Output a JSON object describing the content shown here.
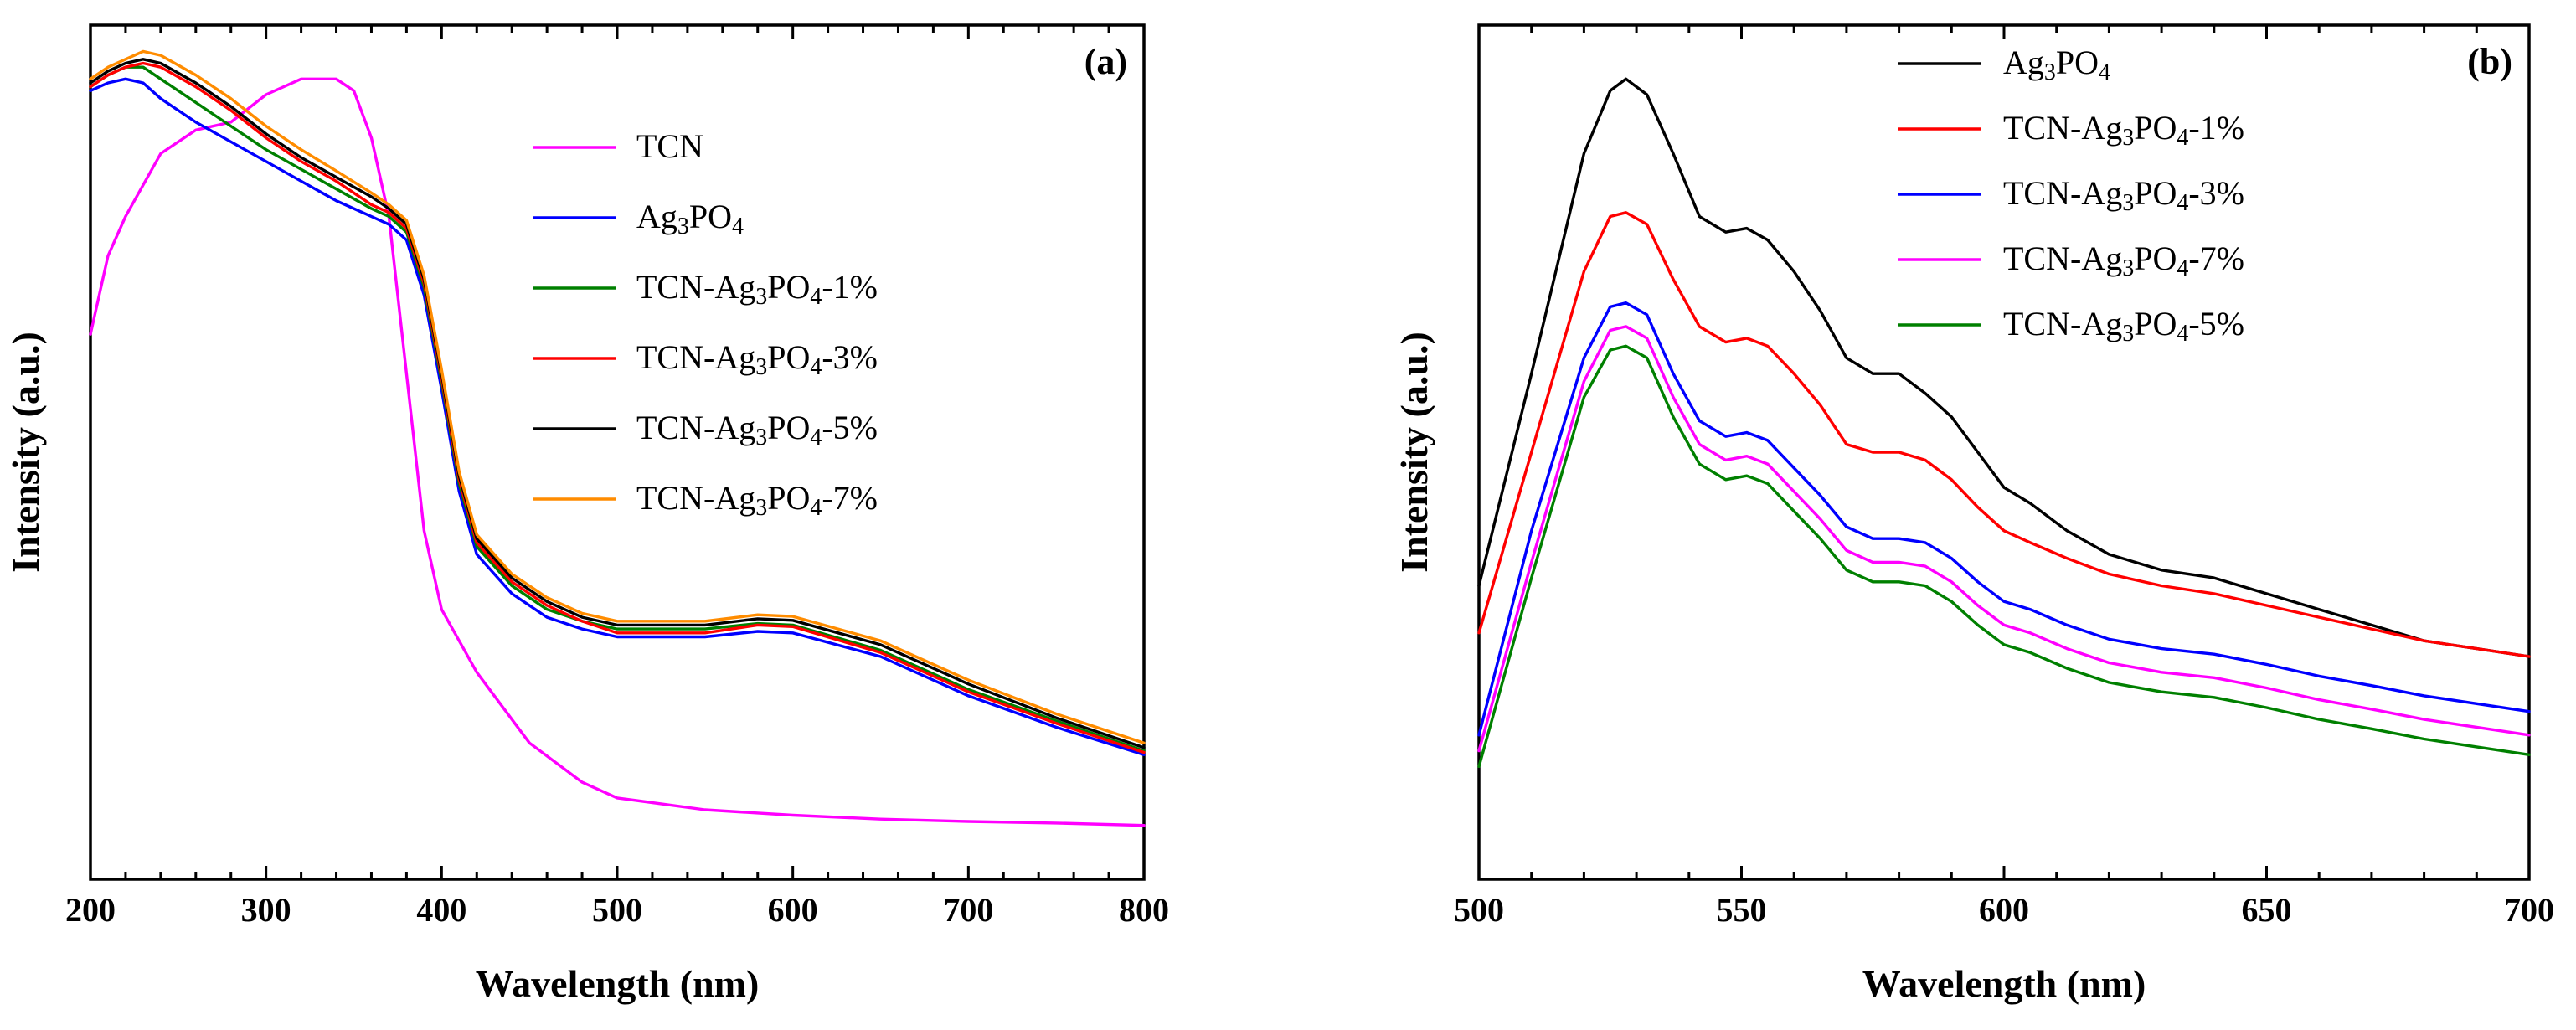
{
  "chart_data": [
    {
      "type": "line",
      "panel_label": "(a)",
      "xlabel": "Wavelength (nm)",
      "ylabel": "Intensity (a.u.)",
      "xlim": [
        200,
        800
      ],
      "ylim": [
        0,
        1
      ],
      "x_ticks": [
        "200",
        "300",
        "400",
        "500",
        "600",
        "700",
        "800"
      ],
      "y_ticks_labeled": false,
      "grid": false,
      "legend_position": "top-right",
      "series": [
        {
          "name": "TCN",
          "legend_main": "TCN",
          "legend_tail": "",
          "color": "#ff00ff",
          "x": [
            200,
            210,
            220,
            240,
            260,
            280,
            300,
            320,
            340,
            350,
            360,
            370,
            380,
            390,
            400,
            420,
            450,
            480,
            500,
            550,
            600,
            650,
            700,
            750,
            800
          ],
          "y": [
            0.65,
            0.75,
            0.8,
            0.88,
            0.91,
            0.92,
            0.955,
            0.975,
            0.975,
            0.96,
            0.9,
            0.8,
            0.6,
            0.4,
            0.3,
            0.22,
            0.13,
            0.08,
            0.06,
            0.045,
            0.038,
            0.033,
            0.03,
            0.028,
            0.025
          ]
        },
        {
          "name": "Ag3PO4",
          "legend_main": "Ag",
          "legend_sub1": "3",
          "legend_mid": "PO",
          "legend_sub2": "4",
          "legend_tail": "",
          "color": "#0000ff",
          "x": [
            200,
            210,
            220,
            230,
            240,
            260,
            280,
            300,
            320,
            340,
            360,
            370,
            380,
            390,
            400,
            410,
            420,
            440,
            460,
            480,
            500,
            550,
            580,
            600,
            650,
            700,
            750,
            800
          ],
          "y": [
            0.96,
            0.97,
            0.975,
            0.97,
            0.95,
            0.92,
            0.895,
            0.87,
            0.845,
            0.82,
            0.8,
            0.79,
            0.77,
            0.7,
            0.58,
            0.45,
            0.37,
            0.32,
            0.29,
            0.275,
            0.265,
            0.265,
            0.272,
            0.27,
            0.24,
            0.19,
            0.15,
            0.115
          ]
        },
        {
          "name": "TCN-Ag3PO4-1%",
          "legend_main": "TCN-Ag",
          "legend_sub1": "3",
          "legend_mid": "PO",
          "legend_sub2": "4",
          "legend_tail": "-1%",
          "color": "#008000",
          "x": [
            200,
            210,
            220,
            230,
            240,
            260,
            280,
            300,
            320,
            340,
            360,
            370,
            380,
            390,
            400,
            410,
            420,
            440,
            460,
            480,
            500,
            550,
            580,
            600,
            650,
            700,
            750,
            800
          ],
          "y": [
            0.965,
            0.98,
            0.99,
            0.99,
            0.975,
            0.945,
            0.915,
            0.885,
            0.86,
            0.835,
            0.81,
            0.8,
            0.78,
            0.71,
            0.59,
            0.46,
            0.38,
            0.33,
            0.3,
            0.285,
            0.275,
            0.275,
            0.282,
            0.28,
            0.248,
            0.198,
            0.158,
            0.12
          ]
        },
        {
          "name": "TCN-Ag3PO4-3%",
          "legend_main": "TCN-Ag",
          "legend_sub1": "3",
          "legend_mid": "PO",
          "legend_sub2": "4",
          "legend_tail": "-3%",
          "color": "#ff0000",
          "x": [
            200,
            210,
            220,
            230,
            240,
            260,
            280,
            300,
            320,
            340,
            360,
            370,
            380,
            390,
            400,
            410,
            420,
            440,
            460,
            480,
            500,
            550,
            580,
            600,
            650,
            700,
            750,
            800
          ],
          "y": [
            0.965,
            0.98,
            0.99,
            0.995,
            0.99,
            0.965,
            0.935,
            0.9,
            0.87,
            0.845,
            0.815,
            0.805,
            0.785,
            0.715,
            0.595,
            0.465,
            0.385,
            0.335,
            0.305,
            0.285,
            0.27,
            0.27,
            0.28,
            0.278,
            0.245,
            0.195,
            0.155,
            0.118
          ]
        },
        {
          "name": "TCN-Ag3PO4-5%",
          "legend_main": "TCN-Ag",
          "legend_sub1": "3",
          "legend_mid": "PO",
          "legend_sub2": "4",
          "legend_tail": "-5%",
          "color": "#000000",
          "x": [
            200,
            210,
            220,
            230,
            240,
            260,
            280,
            300,
            320,
            340,
            360,
            370,
            380,
            390,
            400,
            410,
            420,
            440,
            460,
            480,
            500,
            550,
            580,
            600,
            650,
            700,
            750,
            800
          ],
          "y": [
            0.97,
            0.985,
            0.995,
            1.0,
            0.995,
            0.97,
            0.94,
            0.905,
            0.875,
            0.85,
            0.825,
            0.81,
            0.79,
            0.72,
            0.6,
            0.47,
            0.39,
            0.34,
            0.31,
            0.29,
            0.28,
            0.28,
            0.288,
            0.286,
            0.255,
            0.205,
            0.162,
            0.124
          ]
        },
        {
          "name": "TCN-Ag3PO4-7%",
          "legend_main": "TCN-Ag",
          "legend_sub1": "3",
          "legend_mid": "PO",
          "legend_sub2": "4",
          "legend_tail": "-7%",
          "color": "#ff8c00",
          "x": [
            200,
            210,
            220,
            230,
            240,
            260,
            280,
            300,
            320,
            340,
            360,
            370,
            380,
            390,
            400,
            410,
            420,
            440,
            460,
            480,
            500,
            550,
            580,
            600,
            650,
            700,
            750,
            800
          ],
          "y": [
            0.975,
            0.99,
            1.0,
            1.01,
            1.005,
            0.98,
            0.95,
            0.915,
            0.885,
            0.858,
            0.83,
            0.815,
            0.795,
            0.725,
            0.605,
            0.475,
            0.395,
            0.345,
            0.315,
            0.295,
            0.285,
            0.285,
            0.293,
            0.291,
            0.26,
            0.21,
            0.167,
            0.13
          ]
        }
      ]
    },
    {
      "type": "line",
      "panel_label": "(b)",
      "xlabel": "Wavelength (nm)",
      "ylabel": "Intensity (a.u.)",
      "xlim": [
        500,
        700
      ],
      "ylim": [
        0,
        1
      ],
      "x_ticks": [
        "500",
        "550",
        "600",
        "650",
        "700"
      ],
      "y_ticks_labeled": false,
      "grid": false,
      "legend_position": "top-right",
      "series": [
        {
          "name": "Ag3PO4",
          "legend_main": "Ag",
          "legend_sub1": "3",
          "legend_mid": "PO",
          "legend_sub2": "4",
          "legend_tail": "",
          "color": "#000000",
          "x": [
            500,
            510,
            520,
            525,
            528,
            532,
            537,
            542,
            547,
            551,
            555,
            560,
            565,
            570,
            575,
            580,
            585,
            590,
            595,
            600,
            605,
            612,
            620,
            630,
            640,
            650,
            660,
            670,
            680,
            690,
            700
          ],
          "y": [
            0.33,
            0.6,
            0.88,
            0.96,
            0.975,
            0.955,
            0.88,
            0.8,
            0.78,
            0.785,
            0.77,
            0.73,
            0.68,
            0.62,
            0.6,
            0.6,
            0.575,
            0.545,
            0.5,
            0.455,
            0.435,
            0.4,
            0.37,
            0.35,
            0.34,
            0.32,
            0.3,
            0.28,
            0.26,
            0.25,
            0.24
          ]
        },
        {
          "name": "TCN-Ag3PO4-1%",
          "legend_main": "TCN-Ag",
          "legend_sub1": "3",
          "legend_mid": "PO",
          "legend_sub2": "4",
          "legend_tail": "-1%",
          "color": "#ff0000",
          "x": [
            500,
            510,
            520,
            525,
            528,
            532,
            537,
            542,
            547,
            551,
            555,
            560,
            565,
            570,
            575,
            580,
            585,
            590,
            595,
            600,
            605,
            612,
            620,
            630,
            640,
            650,
            660,
            670,
            680,
            690,
            700
          ],
          "y": [
            0.27,
            0.5,
            0.73,
            0.8,
            0.805,
            0.79,
            0.72,
            0.66,
            0.64,
            0.645,
            0.635,
            0.6,
            0.56,
            0.51,
            0.5,
            0.5,
            0.49,
            0.465,
            0.43,
            0.4,
            0.385,
            0.365,
            0.345,
            0.33,
            0.32,
            0.305,
            0.29,
            0.275,
            0.26,
            0.25,
            0.24
          ]
        },
        {
          "name": "TCN-Ag3PO4-3%",
          "legend_main": "TCN-Ag",
          "legend_sub1": "3",
          "legend_mid": "PO",
          "legend_sub2": "4",
          "legend_tail": "-3%",
          "color": "#0000ff",
          "x": [
            500,
            510,
            520,
            525,
            528,
            532,
            537,
            542,
            547,
            551,
            555,
            560,
            565,
            570,
            575,
            580,
            585,
            590,
            595,
            600,
            605,
            612,
            620,
            630,
            640,
            650,
            660,
            670,
            680,
            690,
            700
          ],
          "y": [
            0.14,
            0.4,
            0.62,
            0.685,
            0.69,
            0.675,
            0.6,
            0.54,
            0.52,
            0.525,
            0.515,
            0.48,
            0.445,
            0.405,
            0.39,
            0.39,
            0.385,
            0.365,
            0.335,
            0.31,
            0.3,
            0.28,
            0.262,
            0.25,
            0.243,
            0.23,
            0.215,
            0.203,
            0.19,
            0.18,
            0.17
          ]
        },
        {
          "name": "TCN-Ag3PO4-7%",
          "legend_main": "TCN-Ag",
          "legend_sub1": "3",
          "legend_mid": "PO",
          "legend_sub2": "4",
          "legend_tail": "-7%",
          "color": "#ff00ff",
          "x": [
            500,
            510,
            520,
            525,
            528,
            532,
            537,
            542,
            547,
            551,
            555,
            560,
            565,
            570,
            575,
            580,
            585,
            590,
            595,
            600,
            605,
            612,
            620,
            630,
            640,
            650,
            660,
            670,
            680,
            690,
            700
          ],
          "y": [
            0.12,
            0.36,
            0.59,
            0.655,
            0.66,
            0.645,
            0.57,
            0.51,
            0.49,
            0.495,
            0.485,
            0.45,
            0.415,
            0.375,
            0.36,
            0.36,
            0.355,
            0.335,
            0.305,
            0.28,
            0.27,
            0.25,
            0.232,
            0.22,
            0.213,
            0.2,
            0.185,
            0.173,
            0.16,
            0.15,
            0.14
          ]
        },
        {
          "name": "TCN-Ag3PO4-5%",
          "legend_main": "TCN-Ag",
          "legend_sub1": "3",
          "legend_mid": "PO",
          "legend_sub2": "4",
          "legend_tail": "-5%",
          "color": "#008000",
          "x": [
            500,
            510,
            520,
            525,
            528,
            532,
            537,
            542,
            547,
            551,
            555,
            560,
            565,
            570,
            575,
            580,
            585,
            590,
            595,
            600,
            605,
            612,
            620,
            630,
            640,
            650,
            660,
            670,
            680,
            690,
            700
          ],
          "y": [
            0.1,
            0.34,
            0.57,
            0.63,
            0.635,
            0.62,
            0.545,
            0.485,
            0.465,
            0.47,
            0.46,
            0.425,
            0.39,
            0.35,
            0.335,
            0.335,
            0.33,
            0.31,
            0.28,
            0.255,
            0.245,
            0.225,
            0.207,
            0.195,
            0.188,
            0.175,
            0.16,
            0.148,
            0.135,
            0.125,
            0.115
          ]
        }
      ]
    }
  ]
}
